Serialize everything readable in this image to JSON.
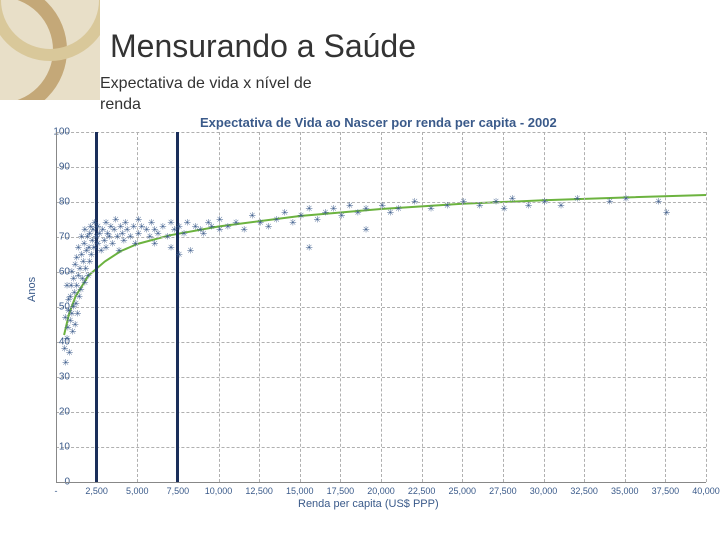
{
  "page": {
    "title": "Mensurando a Saúde",
    "subtitle_line1": "Expectativa de vida x nível de",
    "subtitle_line2": "renda"
  },
  "chart": {
    "type": "scatter",
    "title": "Expectativa de Vida ao Nascer por renda per capita - 2002",
    "xlabel": "Renda per capita (US$ PPP)",
    "ylabel": "Anos",
    "xlim": [
      0,
      40000
    ],
    "ylim": [
      0,
      100
    ],
    "xtick_step": 2500,
    "ytick_step": 10,
    "xtick_labels": [
      "-",
      "2,500",
      "5,000",
      "7,500",
      "10,000",
      "12,500",
      "15,000",
      "17,500",
      "20,000",
      "22,500",
      "25,000",
      "27,500",
      "30,000",
      "32,500",
      "35,000",
      "37,500",
      "40,000"
    ],
    "ytick_labels": [
      "0",
      "10",
      "20",
      "30",
      "40",
      "50",
      "60",
      "70",
      "80",
      "90",
      "100"
    ],
    "background_color": "#ffffff",
    "grid_color": "#b0b0b0",
    "axis_color": "#888888",
    "text_color": "#3a5a8a",
    "curve_color": "#6cb33f",
    "curve_width": 2,
    "marker_color": "#3a5a8a",
    "marker_style": "asterisk",
    "marker_size": 5,
    "vertical_bars_x": [
      2500,
      7500
    ],
    "vertical_bar_color": "#1a2e5a",
    "vertical_bar_width": 3,
    "curve_points": [
      [
        500,
        42
      ],
      [
        800,
        48
      ],
      [
        1200,
        53
      ],
      [
        2000,
        59
      ],
      [
        3000,
        63
      ],
      [
        4000,
        66
      ],
      [
        5000,
        68
      ],
      [
        7000,
        70.5
      ],
      [
        10000,
        73
      ],
      [
        15000,
        76
      ],
      [
        20000,
        78
      ],
      [
        25000,
        79.5
      ],
      [
        30000,
        80.5
      ],
      [
        35000,
        81.3
      ],
      [
        40000,
        82
      ]
    ],
    "scatter": [
      [
        450,
        38
      ],
      [
        500,
        47
      ],
      [
        520,
        34
      ],
      [
        600,
        41
      ],
      [
        600,
        56
      ],
      [
        650,
        44
      ],
      [
        700,
        49
      ],
      [
        700,
        52
      ],
      [
        750,
        37
      ],
      [
        800,
        46
      ],
      [
        800,
        53
      ],
      [
        850,
        56
      ],
      [
        900,
        48
      ],
      [
        900,
        60
      ],
      [
        950,
        43
      ],
      [
        1000,
        50
      ],
      [
        1000,
        58
      ],
      [
        1050,
        54
      ],
      [
        1100,
        62
      ],
      [
        1100,
        45
      ],
      [
        1150,
        51
      ],
      [
        1200,
        56
      ],
      [
        1200,
        64
      ],
      [
        1250,
        48
      ],
      [
        1300,
        59
      ],
      [
        1300,
        67
      ],
      [
        1350,
        53
      ],
      [
        1400,
        61
      ],
      [
        1450,
        55
      ],
      [
        1500,
        65
      ],
      [
        1500,
        70
      ],
      [
        1550,
        58
      ],
      [
        1600,
        63
      ],
      [
        1650,
        68
      ],
      [
        1700,
        57
      ],
      [
        1700,
        72
      ],
      [
        1750,
        61
      ],
      [
        1800,
        66
      ],
      [
        1850,
        70
      ],
      [
        1900,
        59
      ],
      [
        1950,
        67
      ],
      [
        2000,
        71
      ],
      [
        2000,
        63
      ],
      [
        2050,
        73
      ],
      [
        2100,
        65
      ],
      [
        2150,
        69
      ],
      [
        2200,
        72
      ],
      [
        2250,
        67
      ],
      [
        2300,
        74
      ],
      [
        2400,
        70
      ],
      [
        2500,
        68
      ],
      [
        2500,
        73
      ],
      [
        2600,
        71
      ],
      [
        2700,
        66
      ],
      [
        2800,
        72
      ],
      [
        2900,
        69
      ],
      [
        3000,
        74
      ],
      [
        3000,
        67
      ],
      [
        3100,
        71
      ],
      [
        3200,
        70
      ],
      [
        3300,
        73
      ],
      [
        3400,
        68
      ],
      [
        3500,
        72
      ],
      [
        3600,
        75
      ],
      [
        3700,
        70
      ],
      [
        3800,
        66
      ],
      [
        3900,
        73
      ],
      [
        4000,
        71
      ],
      [
        4100,
        69
      ],
      [
        4200,
        74
      ],
      [
        4300,
        72
      ],
      [
        4500,
        70
      ],
      [
        4700,
        73
      ],
      [
        4800,
        68
      ],
      [
        5000,
        71
      ],
      [
        5000,
        75
      ],
      [
        5200,
        73
      ],
      [
        5500,
        72
      ],
      [
        5700,
        70
      ],
      [
        5800,
        74
      ],
      [
        6000,
        72
      ],
      [
        6000,
        68
      ],
      [
        6200,
        71
      ],
      [
        6500,
        73
      ],
      [
        6800,
        70
      ],
      [
        7000,
        74
      ],
      [
        7000,
        67
      ],
      [
        7200,
        72
      ],
      [
        7500,
        73
      ],
      [
        7500,
        65
      ],
      [
        7800,
        71
      ],
      [
        8000,
        74
      ],
      [
        8200,
        66
      ],
      [
        8500,
        73
      ],
      [
        8800,
        72
      ],
      [
        9000,
        71
      ],
      [
        9300,
        74
      ],
      [
        9500,
        73
      ],
      [
        10000,
        72
      ],
      [
        10000,
        75
      ],
      [
        10500,
        73
      ],
      [
        11000,
        74
      ],
      [
        11500,
        72
      ],
      [
        12000,
        76
      ],
      [
        12500,
        74
      ],
      [
        13000,
        73
      ],
      [
        13500,
        75
      ],
      [
        14000,
        77
      ],
      [
        14500,
        74
      ],
      [
        15000,
        76
      ],
      [
        15500,
        78
      ],
      [
        16000,
        75
      ],
      [
        16500,
        77
      ],
      [
        17000,
        78
      ],
      [
        17500,
        76
      ],
      [
        18000,
        79
      ],
      [
        18500,
        77
      ],
      [
        19000,
        78
      ],
      [
        20000,
        79
      ],
      [
        20500,
        77
      ],
      [
        21000,
        78
      ],
      [
        22000,
        80
      ],
      [
        23000,
        78
      ],
      [
        24000,
        79
      ],
      [
        25000,
        80
      ],
      [
        26000,
        79
      ],
      [
        27000,
        80
      ],
      [
        27500,
        78
      ],
      [
        28000,
        81
      ],
      [
        29000,
        79
      ],
      [
        30000,
        80
      ],
      [
        31000,
        79
      ],
      [
        32000,
        81
      ],
      [
        34000,
        80
      ],
      [
        35000,
        81
      ],
      [
        37000,
        80
      ],
      [
        15500,
        67
      ],
      [
        19000,
        72
      ],
      [
        37500,
        77
      ]
    ]
  },
  "decoration": {
    "colors": [
      "#d9c89a",
      "#c4a878",
      "#e8dfc8"
    ]
  }
}
